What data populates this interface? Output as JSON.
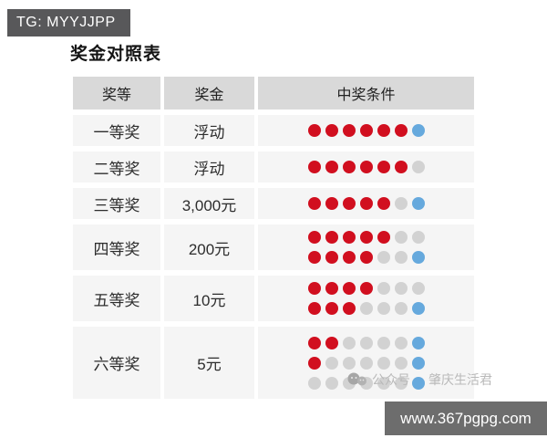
{
  "colors": {
    "red": "#d10f1f",
    "blue": "#66a9dd",
    "miss": "#d2d2d2",
    "header_bg": "#d9d9d9",
    "cell_bg": "#f5f5f5",
    "badge_bg": "#58585a",
    "footer_bg": "#6d6d6d",
    "watermark": "#b9b9b9"
  },
  "badge": {
    "label": "TG: MYYJJPP"
  },
  "title": "奖金对照表",
  "table": {
    "headers": {
      "level": "奖等",
      "amount": "奖金",
      "condition": "中奖条件"
    },
    "rows": [
      {
        "level": "一等奖",
        "amount": "浮动",
        "dots": [
          [
            "red",
            "red",
            "red",
            "red",
            "red",
            "red",
            "blue"
          ]
        ]
      },
      {
        "level": "二等奖",
        "amount": "浮动",
        "dots": [
          [
            "red",
            "red",
            "red",
            "red",
            "red",
            "red",
            "miss"
          ]
        ]
      },
      {
        "level": "三等奖",
        "amount": "3,000元",
        "dots": [
          [
            "red",
            "red",
            "red",
            "red",
            "red",
            "miss",
            "blue"
          ]
        ]
      },
      {
        "level": "四等奖",
        "amount": "200元",
        "dots": [
          [
            "red",
            "red",
            "red",
            "red",
            "red",
            "miss",
            "miss"
          ],
          [
            "red",
            "red",
            "red",
            "red",
            "miss",
            "miss",
            "blue"
          ]
        ]
      },
      {
        "level": "五等奖",
        "amount": "10元",
        "dots": [
          [
            "red",
            "red",
            "red",
            "red",
            "miss",
            "miss",
            "miss"
          ],
          [
            "red",
            "red",
            "red",
            "miss",
            "miss",
            "miss",
            "blue"
          ]
        ]
      },
      {
        "level": "六等奖",
        "amount": "5元",
        "dots": [
          [
            "red",
            "red",
            "miss",
            "miss",
            "miss",
            "miss",
            "blue"
          ],
          [
            "red",
            "miss",
            "miss",
            "miss",
            "miss",
            "miss",
            "blue"
          ],
          [
            "miss",
            "miss",
            "miss",
            "miss",
            "miss",
            "miss",
            "blue"
          ]
        ]
      }
    ]
  },
  "watermark": {
    "icon": "wechat-bubbles-icon",
    "account_label": "公众号",
    "account_name": "肇庆生活君"
  },
  "footer": {
    "url": "www.367pgpg.com"
  },
  "chart_data": {
    "type": "table",
    "title": "奖金对照表",
    "columns": [
      "奖等",
      "奖金",
      "中奖条件"
    ],
    "rows": [
      [
        "一等奖",
        "浮动",
        "6红+1蓝"
      ],
      [
        "二等奖",
        "浮动",
        "6红+0蓝"
      ],
      [
        "三等奖",
        "3,000元",
        "5红+1蓝"
      ],
      [
        "四等奖",
        "200元",
        "5红+0蓝 / 4红+1蓝"
      ],
      [
        "五等奖",
        "10元",
        "4红+0蓝 / 3红+1蓝"
      ],
      [
        "六等奖",
        "5元",
        "2红+1蓝 / 1红+1蓝 / 0红+1蓝"
      ]
    ]
  }
}
